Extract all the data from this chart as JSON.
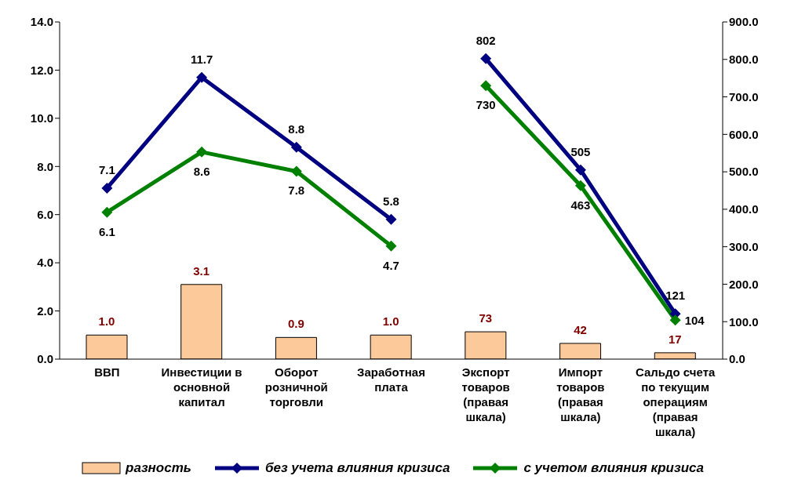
{
  "chart_data": {
    "type": "bar",
    "categories": [
      "ВВП",
      "Инвестиции в основной капитал",
      "Оборот розничной торговли",
      "Заработная плата",
      "Экспорт товаров (правая шкала)",
      "Импорт товаров (правая шкала)",
      "Сальдо счета по текущим операциям (правая шкала)"
    ],
    "series": [
      {
        "name": "разность",
        "color": "#fcc99a",
        "values": [
          1.0,
          3.1,
          0.9,
          1.0,
          null,
          null,
          null
        ],
        "value_labels": [
          "1.0",
          "3.1",
          "0.9",
          "1.0",
          null,
          null,
          null
        ]
      },
      {
        "axis": "y2",
        "color": "#fcc99a",
        "values": [
          null,
          null,
          null,
          null,
          73,
          42,
          17
        ],
        "value_labels": [
          null,
          null,
          null,
          null,
          "73",
          "42",
          "17"
        ]
      },
      {
        "name": "без учета влияния кризиса",
        "type": "line",
        "color": "#000080",
        "values": [
          7.1,
          11.7,
          8.8,
          5.8,
          null,
          null,
          null
        ],
        "value_labels": [
          "7.1",
          "11.7",
          "8.8",
          "5.8",
          null,
          null,
          null
        ]
      },
      {
        "type": "line",
        "axis": "y2",
        "color": "#000080",
        "values": [
          null,
          null,
          null,
          null,
          802,
          505,
          121
        ],
        "value_labels": [
          null,
          null,
          null,
          null,
          "802",
          "505",
          "121"
        ]
      },
      {
        "name": "с учетом влияния кризиса",
        "type": "line",
        "color": "#008000",
        "values": [
          6.1,
          8.6,
          7.8,
          4.7,
          null,
          null,
          null
        ],
        "value_labels": [
          "6.1",
          "8.6",
          "7.8",
          "4.7",
          null,
          null,
          null
        ]
      },
      {
        "type": "line",
        "axis": "y2",
        "color": "#008000",
        "values": [
          null,
          null,
          null,
          null,
          730,
          463,
          104
        ],
        "value_labels": [
          null,
          null,
          null,
          null,
          "730",
          "463",
          "104"
        ]
      }
    ],
    "ylim": [
      0,
      14
    ],
    "yticks": [
      {
        "value": 0,
        "label": "0.0"
      },
      {
        "value": 2,
        "label": "2.0"
      },
      {
        "value": 4,
        "label": "4.0"
      },
      {
        "value": 6,
        "label": "6.0"
      },
      {
        "value": 8,
        "label": "8.0"
      },
      {
        "value": 10,
        "label": "10.0"
      },
      {
        "value": 12,
        "label": "12.0"
      },
      {
        "value": 14,
        "label": "14.0"
      }
    ],
    "y2lim": [
      0,
      900
    ],
    "y2ticks": [
      {
        "value": 0,
        "label": "0.0"
      },
      {
        "value": 100,
        "label": "100.0"
      },
      {
        "value": 200,
        "label": "200.0"
      },
      {
        "value": 300,
        "label": "300.0"
      },
      {
        "value": 400,
        "label": "400.0"
      },
      {
        "value": 500,
        "label": "500.0"
      },
      {
        "value": 600,
        "label": "600.0"
      },
      {
        "value": 700,
        "label": "700.0"
      },
      {
        "value": 800,
        "label": "800.0"
      },
      {
        "value": 900,
        "label": "900.0"
      }
    ],
    "marker": "diamond",
    "legend": "bottom"
  }
}
